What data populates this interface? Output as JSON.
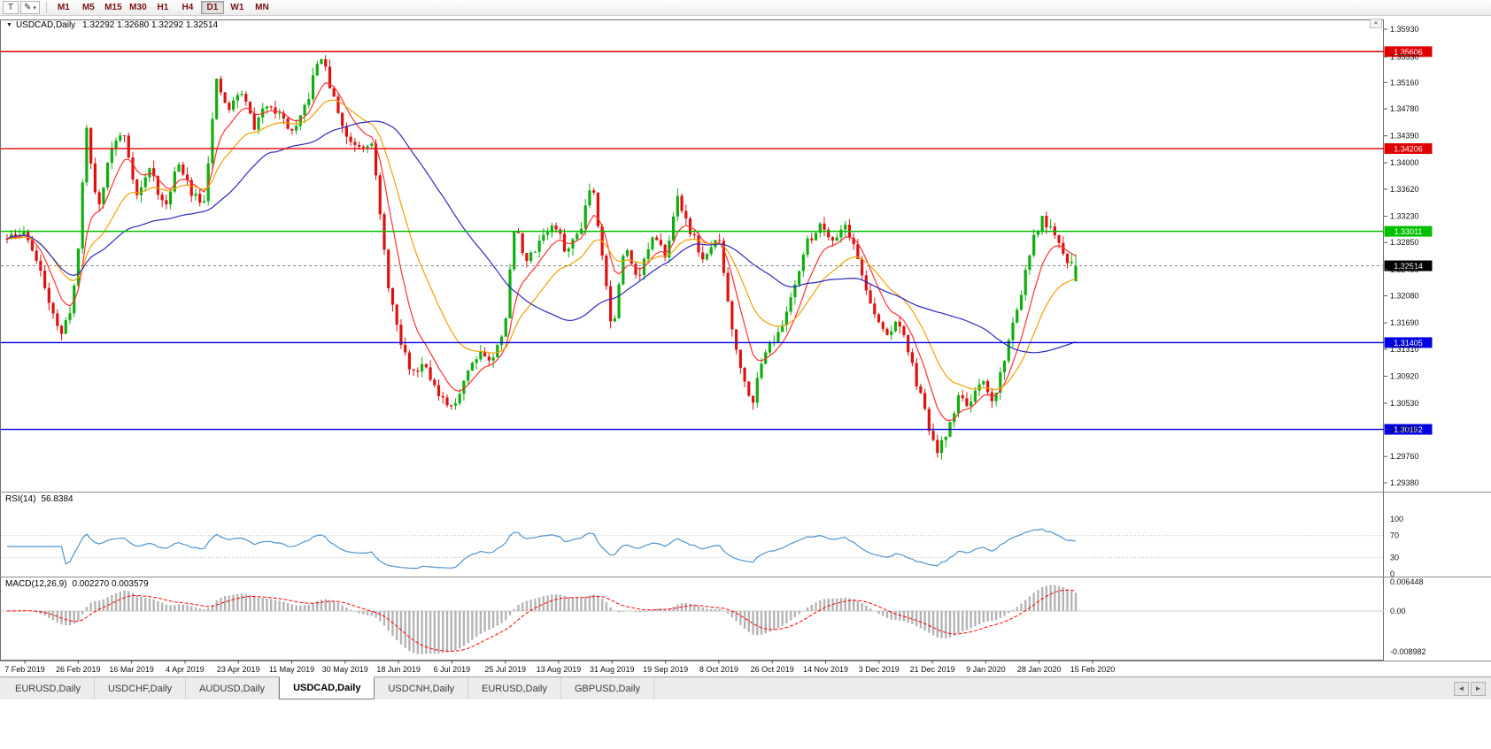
{
  "toolbar": {
    "text_tool_label": "T",
    "draw_tool_icon": "✎",
    "caret_icon": "▾",
    "timeframes": [
      "M1",
      "M5",
      "M15",
      "M30",
      "H1",
      "H4",
      "D1",
      "W1",
      "MN"
    ],
    "active_timeframe": "D1"
  },
  "scroll": {
    "up_icon": "▲"
  },
  "quote": {
    "dropdown_icon": "▼",
    "symbol": "USDCAD,Daily",
    "ohlc": "1.32292 1.32680 1.32292 1.32514",
    "open": "1.32292",
    "high": "1.32680",
    "low": "1.32292",
    "close": "1.32514"
  },
  "price_axis": {
    "ticks": [
      "1.35930",
      "1.35530",
      "1.35160",
      "1.34780",
      "1.34390",
      "1.34000",
      "1.33620",
      "1.33230",
      "1.32850",
      "1.32460",
      "1.32080",
      "1.31690",
      "1.31310",
      "1.30920",
      "1.30530",
      "1.30150",
      "1.29760",
      "1.29380"
    ]
  },
  "levels": [
    {
      "price": 1.35606,
      "label": "1.35606",
      "color": "#e00000"
    },
    {
      "price": 1.34206,
      "label": "1.34206",
      "color": "#e00000"
    },
    {
      "price": 1.33011,
      "label": "1.33011",
      "color": "#00c000"
    },
    {
      "price": 1.31405,
      "label": "1.31405",
      "color": "#0000e0"
    },
    {
      "price": 1.30152,
      "label": "1.30152",
      "color": "#0000e0"
    }
  ],
  "bid": {
    "price": 1.32514,
    "label": "1.32514",
    "color": "#000000"
  },
  "indicators": {
    "rsi": {
      "name": "RSI(14)",
      "value": "56.8384",
      "period": 14,
      "levels": [
        100,
        70,
        30,
        0
      ],
      "dotted_levels": [
        70,
        30
      ],
      "color": "#4f94cd"
    },
    "macd": {
      "name": "MACD(12,26,9)",
      "values": "0.002270 0.003579",
      "fast": 12,
      "slow": 26,
      "signal": 9,
      "axis_labels": [
        "0.006448",
        "0.00",
        "-0.008982"
      ],
      "axis_values": [
        0.006448,
        0,
        -0.008982
      ],
      "hist_color": "#b4b4b4",
      "signal_color": "#ff0000"
    }
  },
  "date_axis": [
    "7 Feb 2019",
    "26 Feb 2019",
    "16 Mar 2019",
    "4 Apr 2019",
    "23 Apr 2019",
    "11 May 2019",
    "30 May 2019",
    "18 Jun 2019",
    "6 Jul 2019",
    "25 Jul 2019",
    "13 Aug 2019",
    "31 Aug 2019",
    "19 Sep 2019",
    "8 Oct 2019",
    "26 Oct 2019",
    "14 Nov 2019",
    "3 Dec 2019",
    "21 Dec 2019",
    "9 Jan 2020",
    "28 Jan 2020",
    "15 Feb 2020"
  ],
  "tabs": [
    {
      "label": "EURUSD,Daily",
      "active": false
    },
    {
      "label": "USDCHF,Daily",
      "active": false
    },
    {
      "label": "AUDUSD,Daily",
      "active": false
    },
    {
      "label": "USDCAD,Daily",
      "active": true
    },
    {
      "label": "USDCNH,Daily",
      "active": false
    },
    {
      "label": "EURUSD,Daily",
      "active": false
    },
    {
      "label": "GBPUSD,Daily",
      "active": false
    }
  ],
  "tab_nav": {
    "left": "◄",
    "right": "►"
  },
  "chart_data": {
    "type": "candlestick",
    "symbol": "USDCAD",
    "timeframe": "D1",
    "n_candles": 256,
    "seed": 11,
    "close_noise": 0.0007,
    "wick_noise": 0.0011,
    "price_axis_range": [
      1.2925,
      1.3608
    ],
    "colors": {
      "up": "#0fae0f",
      "down": "#e01010"
    },
    "last_candle": {
      "o": 1.32292,
      "h": 1.3268,
      "l": 1.32292,
      "c": 1.32514
    },
    "anchors": [
      [
        0.0,
        1.329
      ],
      [
        0.018,
        1.33
      ],
      [
        0.039,
        1.3205
      ],
      [
        0.051,
        1.3148
      ],
      [
        0.061,
        1.32
      ],
      [
        0.068,
        1.329
      ],
      [
        0.073,
        1.346
      ],
      [
        0.085,
        1.333
      ],
      [
        0.097,
        1.342
      ],
      [
        0.109,
        1.3445
      ],
      [
        0.122,
        1.335
      ],
      [
        0.134,
        1.3395
      ],
      [
        0.147,
        1.333
      ],
      [
        0.159,
        1.34
      ],
      [
        0.172,
        1.336
      ],
      [
        0.184,
        1.3345
      ],
      [
        0.196,
        1.3515
      ],
      [
        0.207,
        1.3475
      ],
      [
        0.219,
        1.3505
      ],
      [
        0.232,
        1.345
      ],
      [
        0.244,
        1.349
      ],
      [
        0.257,
        1.3465
      ],
      [
        0.269,
        1.344
      ],
      [
        0.282,
        1.3495
      ],
      [
        0.293,
        1.356
      ],
      [
        0.305,
        1.3495
      ],
      [
        0.318,
        1.3435
      ],
      [
        0.331,
        1.3425
      ],
      [
        0.341,
        1.3435
      ],
      [
        0.355,
        1.324
      ],
      [
        0.366,
        1.315
      ],
      [
        0.379,
        1.3095
      ],
      [
        0.391,
        1.3115
      ],
      [
        0.404,
        1.306
      ],
      [
        0.417,
        1.3042
      ],
      [
        0.429,
        1.3095
      ],
      [
        0.442,
        1.313
      ],
      [
        0.454,
        1.3112
      ],
      [
        0.466,
        1.317
      ],
      [
        0.475,
        1.331
      ],
      [
        0.487,
        1.3255
      ],
      [
        0.5,
        1.3295
      ],
      [
        0.512,
        1.331
      ],
      [
        0.524,
        1.327
      ],
      [
        0.537,
        1.331
      ],
      [
        0.547,
        1.3378
      ],
      [
        0.558,
        1.326
      ],
      [
        0.566,
        1.3152
      ],
      [
        0.578,
        1.328
      ],
      [
        0.591,
        1.3235
      ],
      [
        0.603,
        1.329
      ],
      [
        0.616,
        1.327
      ],
      [
        0.628,
        1.335
      ],
      [
        0.64,
        1.33
      ],
      [
        0.653,
        1.3255
      ],
      [
        0.665,
        1.33
      ],
      [
        0.678,
        1.3165
      ],
      [
        0.69,
        1.3082
      ],
      [
        0.698,
        1.306
      ],
      [
        0.711,
        1.314
      ],
      [
        0.723,
        1.3152
      ],
      [
        0.736,
        1.3222
      ],
      [
        0.748,
        1.3282
      ],
      [
        0.761,
        1.3312
      ],
      [
        0.773,
        1.329
      ],
      [
        0.785,
        1.3312
      ],
      [
        0.798,
        1.3252
      ],
      [
        0.81,
        1.3182
      ],
      [
        0.823,
        1.3152
      ],
      [
        0.835,
        1.3172
      ],
      [
        0.848,
        1.31
      ],
      [
        0.86,
        1.3032
      ],
      [
        0.87,
        1.2978
      ],
      [
        0.88,
        1.3012
      ],
      [
        0.89,
        1.3062
      ],
      [
        0.901,
        1.3052
      ],
      [
        0.913,
        1.3082
      ],
      [
        0.922,
        1.3052
      ],
      [
        0.934,
        1.3122
      ],
      [
        0.947,
        1.3202
      ],
      [
        0.959,
        1.3282
      ],
      [
        0.969,
        1.3322
      ],
      [
        0.98,
        1.3292
      ],
      [
        0.99,
        1.3262
      ],
      [
        1.0,
        1.32514
      ]
    ],
    "moving_averages": [
      {
        "type": "ema",
        "period": 8,
        "color": "#ff3030"
      },
      {
        "type": "ema",
        "period": 20,
        "color": "#f2a100"
      },
      {
        "type": "sma",
        "period": 45,
        "color": "#2a2ac0"
      }
    ]
  }
}
